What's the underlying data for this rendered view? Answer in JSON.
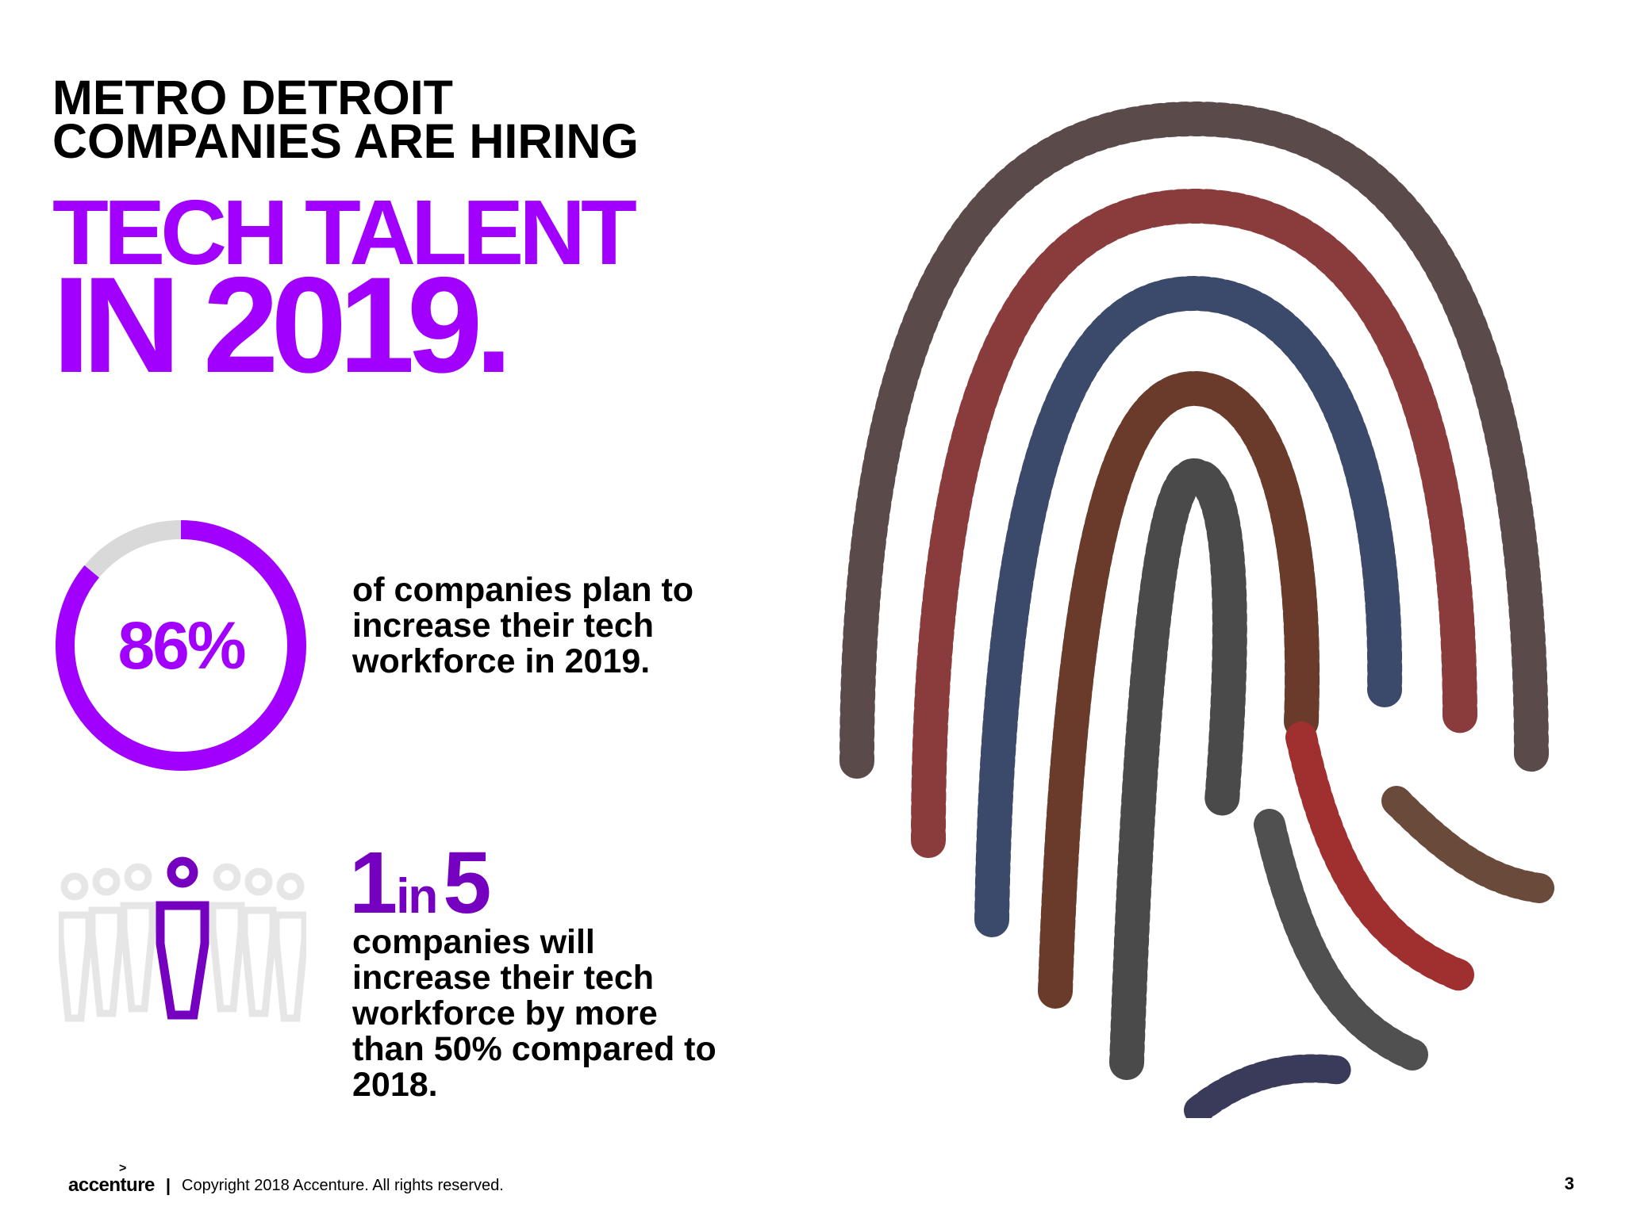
{
  "headline": {
    "line1": "METRO DETROIT",
    "line2": "COMPANIES ARE HIRING"
  },
  "highlight": {
    "line1": "TECH TALENT",
    "line2": "IN 2019."
  },
  "stat1": {
    "value_label": "86%",
    "percent": 86,
    "description": "of companies plan to increase their tech workforce in 2019."
  },
  "stat2": {
    "ratio_num": "1",
    "ratio_in": "in",
    "ratio_den": "5",
    "description": "companies will increase their tech workforce by more than 50% compared to 2018."
  },
  "icons": {
    "ring": "donut-progress-icon",
    "people": "people-group-icon",
    "photo": "crowd-fingerprint-image"
  },
  "colors": {
    "purple": "#a100ff",
    "dark_purple": "#7500c0",
    "ring_track": "#d9d9d9",
    "people_grey": "#e6e6e6"
  },
  "footer": {
    "logo": "accenture",
    "logo_mark": ">",
    "separator": "|",
    "copyright": "Copyright 2018 Accenture. All rights reserved.",
    "page_number": "3"
  }
}
